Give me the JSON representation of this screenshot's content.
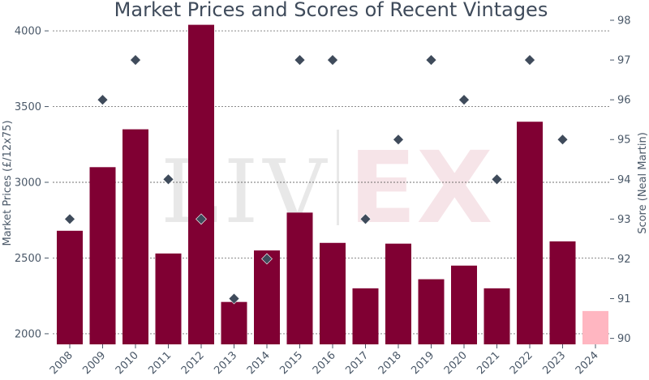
{
  "chart_data": {
    "type": "bar",
    "title": "Market Prices and Scores of Recent Vintages",
    "xlabel": "",
    "ylabel": "Market Prices (£/12x75)",
    "y2label": "Score (Neal Martin)",
    "watermark": "LIV-EX",
    "categories": [
      "2008",
      "2009",
      "2010",
      "2011",
      "2012",
      "2013",
      "2014",
      "2015",
      "2016",
      "2017",
      "2018",
      "2019",
      "2020",
      "2021",
      "2022",
      "2023",
      "2024"
    ],
    "ylim": [
      1930,
      4070
    ],
    "yticks": [
      2000,
      2500,
      3000,
      3500,
      4000
    ],
    "y2lim": [
      89.85,
      98
    ],
    "y2ticks": [
      90,
      91,
      92,
      93,
      94,
      95,
      96,
      97,
      98
    ],
    "grid": true,
    "series": [
      {
        "kind": "bar",
        "axis": "left",
        "values": [
          2680,
          3100,
          3350,
          2530,
          4040,
          2210,
          2550,
          2800,
          2600,
          2300,
          2595,
          2360,
          2450,
          2300,
          3400,
          2610,
          2150
        ],
        "colors": [
          "#800033",
          "#800033",
          "#800033",
          "#800033",
          "#800033",
          "#800033",
          "#800033",
          "#800033",
          "#800033",
          "#800033",
          "#800033",
          "#800033",
          "#800033",
          "#800033",
          "#800033",
          "#800033",
          "#ffb6c1"
        ]
      },
      {
        "kind": "scatter",
        "axis": "right",
        "marker": "diamond",
        "color": "#3f4b5b",
        "values": [
          93,
          96,
          97,
          94,
          93,
          91,
          92,
          97,
          97,
          93,
          95,
          97,
          96,
          94,
          97,
          95,
          null
        ]
      }
    ]
  }
}
